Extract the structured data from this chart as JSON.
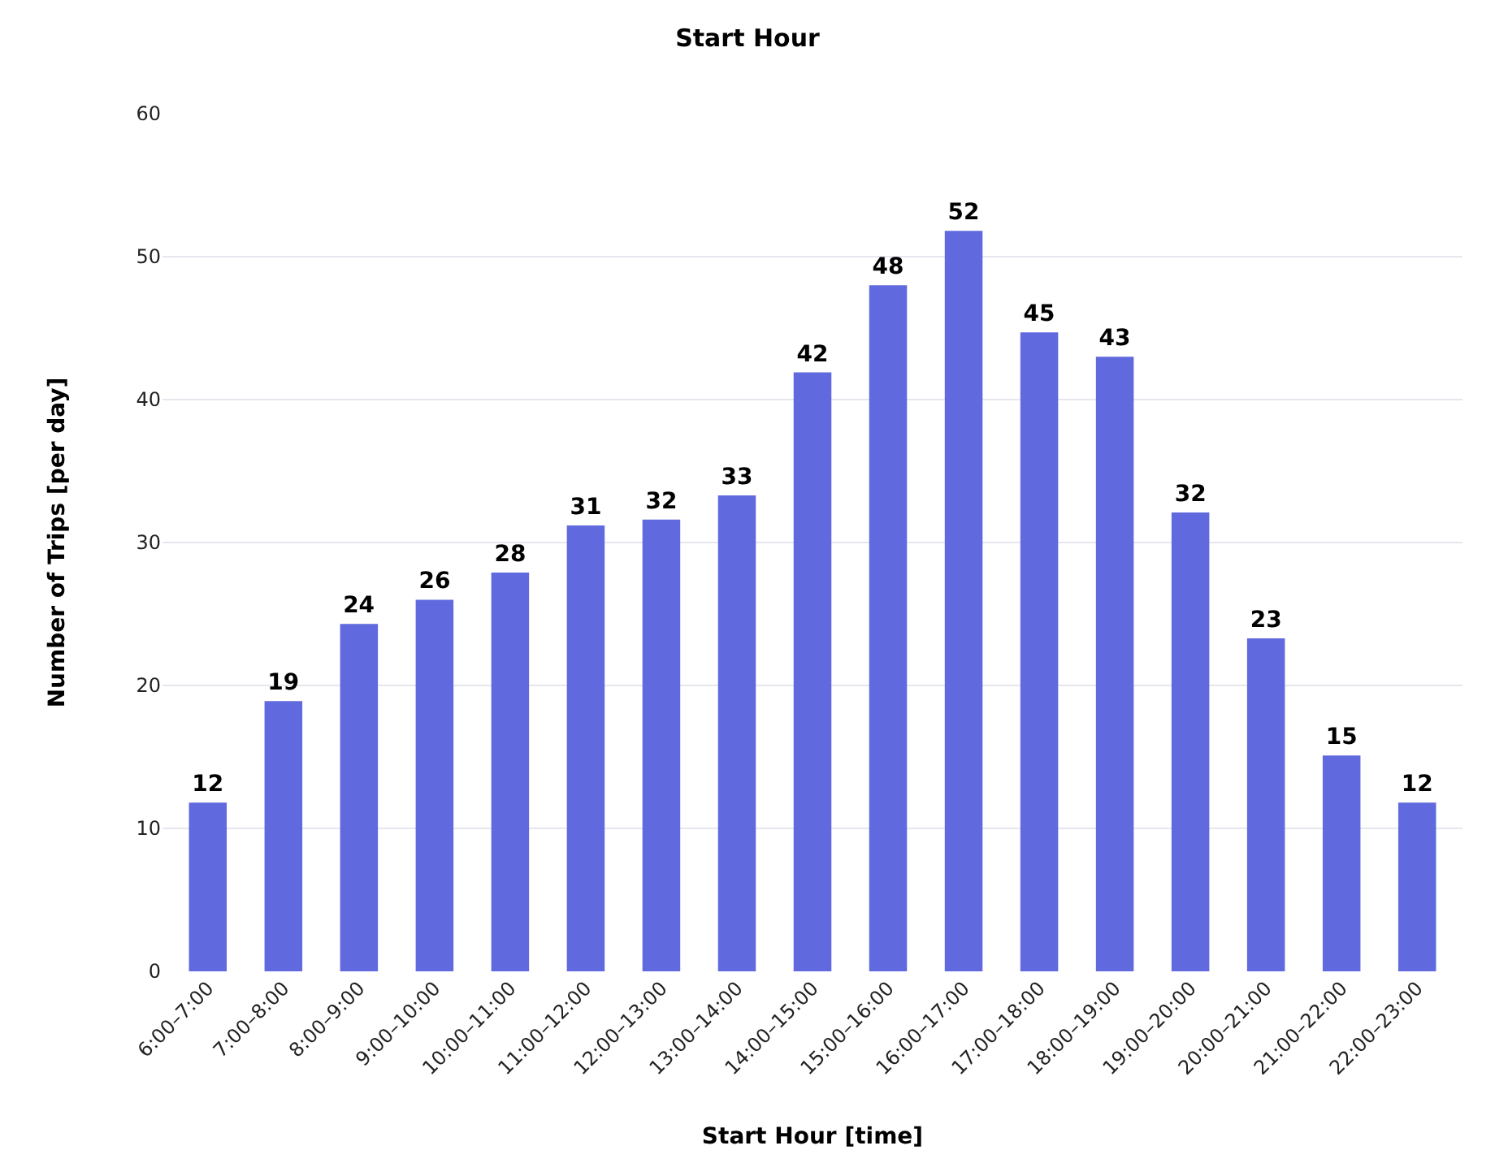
{
  "chart_data": {
    "type": "bar",
    "title": "Start Hour",
    "xlabel": "Start Hour [time]",
    "ylabel": "Number of Trips [per day]",
    "categories": [
      "6:00–7:00",
      "7:00–8:00",
      "8:00–9:00",
      "9:00–10:00",
      "10:00–11:00",
      "11:00–12:00",
      "12:00–13:00",
      "13:00–14:00",
      "14:00–15:00",
      "15:00–16:00",
      "16:00–17:00",
      "17:00–18:00",
      "18:00–19:00",
      "19:00–20:00",
      "20:00–21:00",
      "21:00–22:00",
      "22:00–23:00"
    ],
    "values": [
      11.8,
      18.9,
      24.3,
      26.0,
      27.9,
      31.2,
      31.6,
      33.3,
      41.9,
      48.0,
      51.8,
      44.7,
      43.0,
      32.1,
      23.3,
      15.1,
      11.8
    ],
    "value_labels": [
      "12",
      "19",
      "24",
      "26",
      "28",
      "31",
      "32",
      "33",
      "42",
      "48",
      "52",
      "45",
      "43",
      "32",
      "23",
      "15",
      "12"
    ],
    "color": "#6069dd",
    "ylim": [
      0,
      60
    ],
    "yticks": [
      0,
      10,
      20,
      30,
      40,
      50,
      60
    ],
    "grid": "y",
    "legend": false
  }
}
